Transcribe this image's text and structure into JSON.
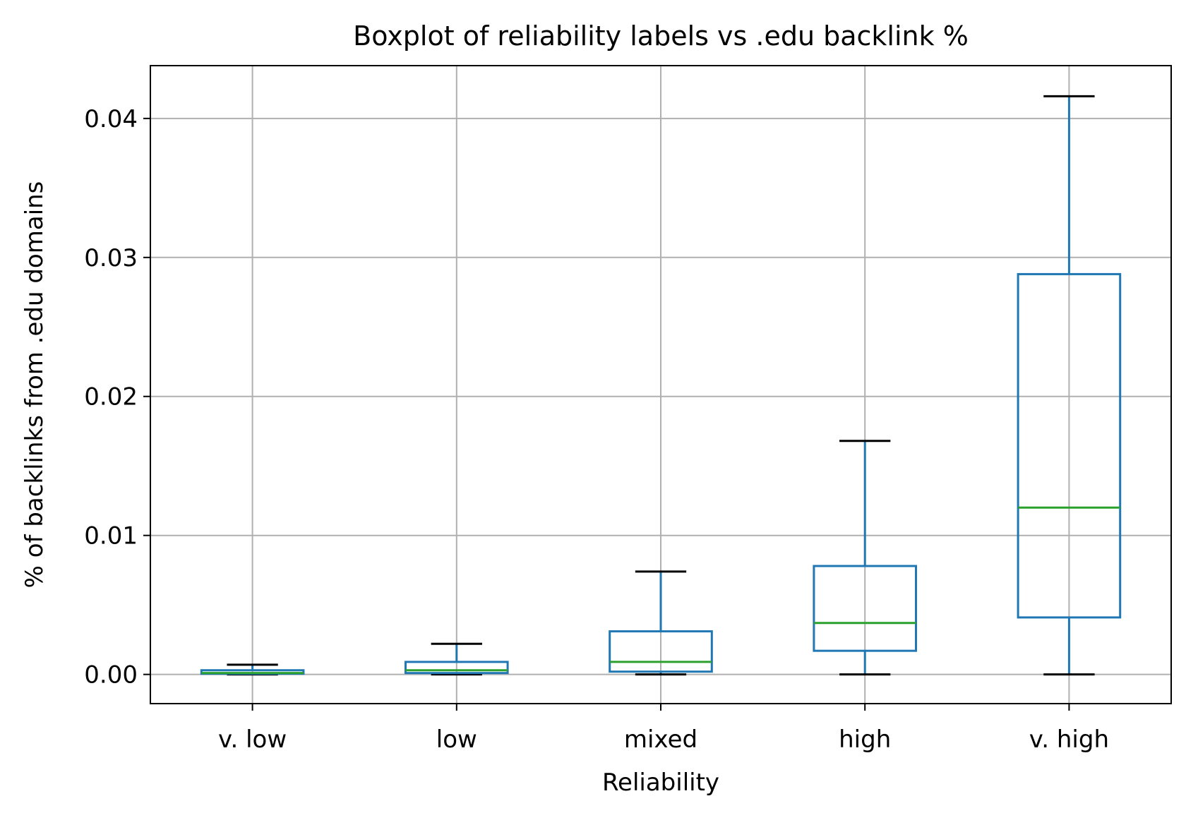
{
  "chart_data": {
    "type": "boxplot",
    "title": "Boxplot of reliability labels vs .edu backlink %",
    "xlabel": "Reliability",
    "ylabel": "% of backlinks from .edu domains",
    "ylim": [
      -0.0021,
      0.0438
    ],
    "yticks": [
      0.0,
      0.01,
      0.02,
      0.03,
      0.04
    ],
    "ytick_labels": [
      "0.00",
      "0.01",
      "0.02",
      "0.03",
      "0.04"
    ],
    "grid": true,
    "categories": [
      "v. low",
      "low",
      "mixed",
      "high",
      "v. high"
    ],
    "boxes": [
      {
        "whisker_low": 0.0,
        "q1": 5e-05,
        "median": 0.0001,
        "q3": 0.0003,
        "whisker_high": 0.0007
      },
      {
        "whisker_low": 0.0,
        "q1": 0.0001,
        "median": 0.0003,
        "q3": 0.0009,
        "whisker_high": 0.0022
      },
      {
        "whisker_low": 0.0,
        "q1": 0.0002,
        "median": 0.0009,
        "q3": 0.0031,
        "whisker_high": 0.0074
      },
      {
        "whisker_low": 0.0,
        "q1": 0.0017,
        "median": 0.0037,
        "q3": 0.0078,
        "whisker_high": 0.0168
      },
      {
        "whisker_low": 0.0,
        "q1": 0.0041,
        "median": 0.012,
        "q3": 0.0288,
        "whisker_high": 0.0416
      }
    ],
    "colors": {
      "box": "#1f77b4",
      "median": "#2ca02c",
      "cap": "#000000",
      "grid": "#b0b0b0",
      "frame": "#000000"
    }
  }
}
